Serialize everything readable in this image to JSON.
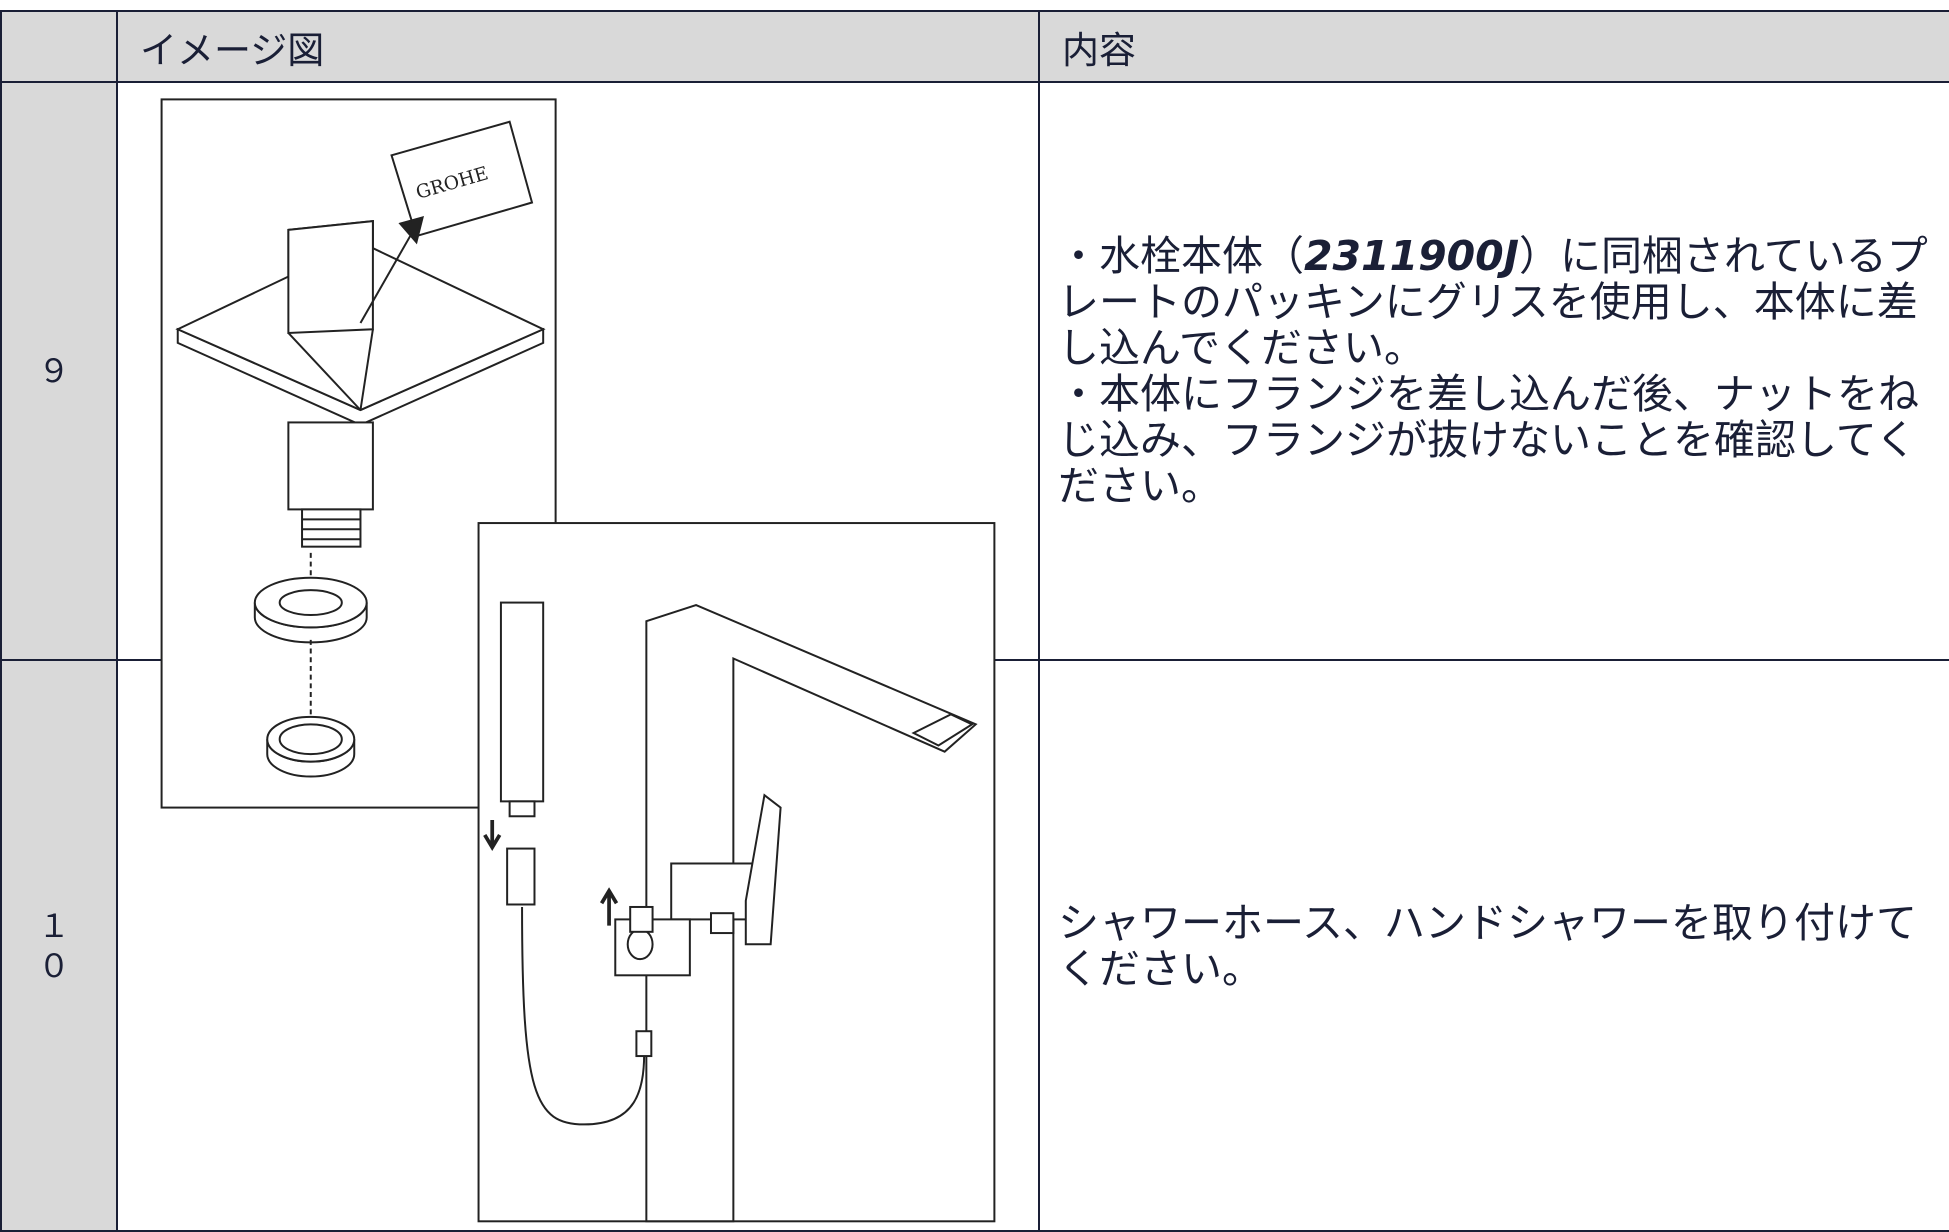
{
  "table": {
    "columns": [
      "イメージ図",
      "内容"
    ],
    "rows": [
      {
        "number": "９",
        "content": [
          [
            "・水栓本体（",
            "2311900J",
            "）に同梱されているプレートのパッキンにグリスを使用し、本体に差し込んでください。"
          ],
          [
            "・本体にフランジを差し込んだ後、ナットをねじ込み、フランジが抜けないことを確認してください。"
          ]
        ]
      },
      {
        "number": "１０",
        "content": [
          [
            "シャワーホース、ハンドシャワーを取り付けてください。"
          ]
        ]
      }
    ]
  },
  "illustration": {
    "brand": "GROHE"
  }
}
